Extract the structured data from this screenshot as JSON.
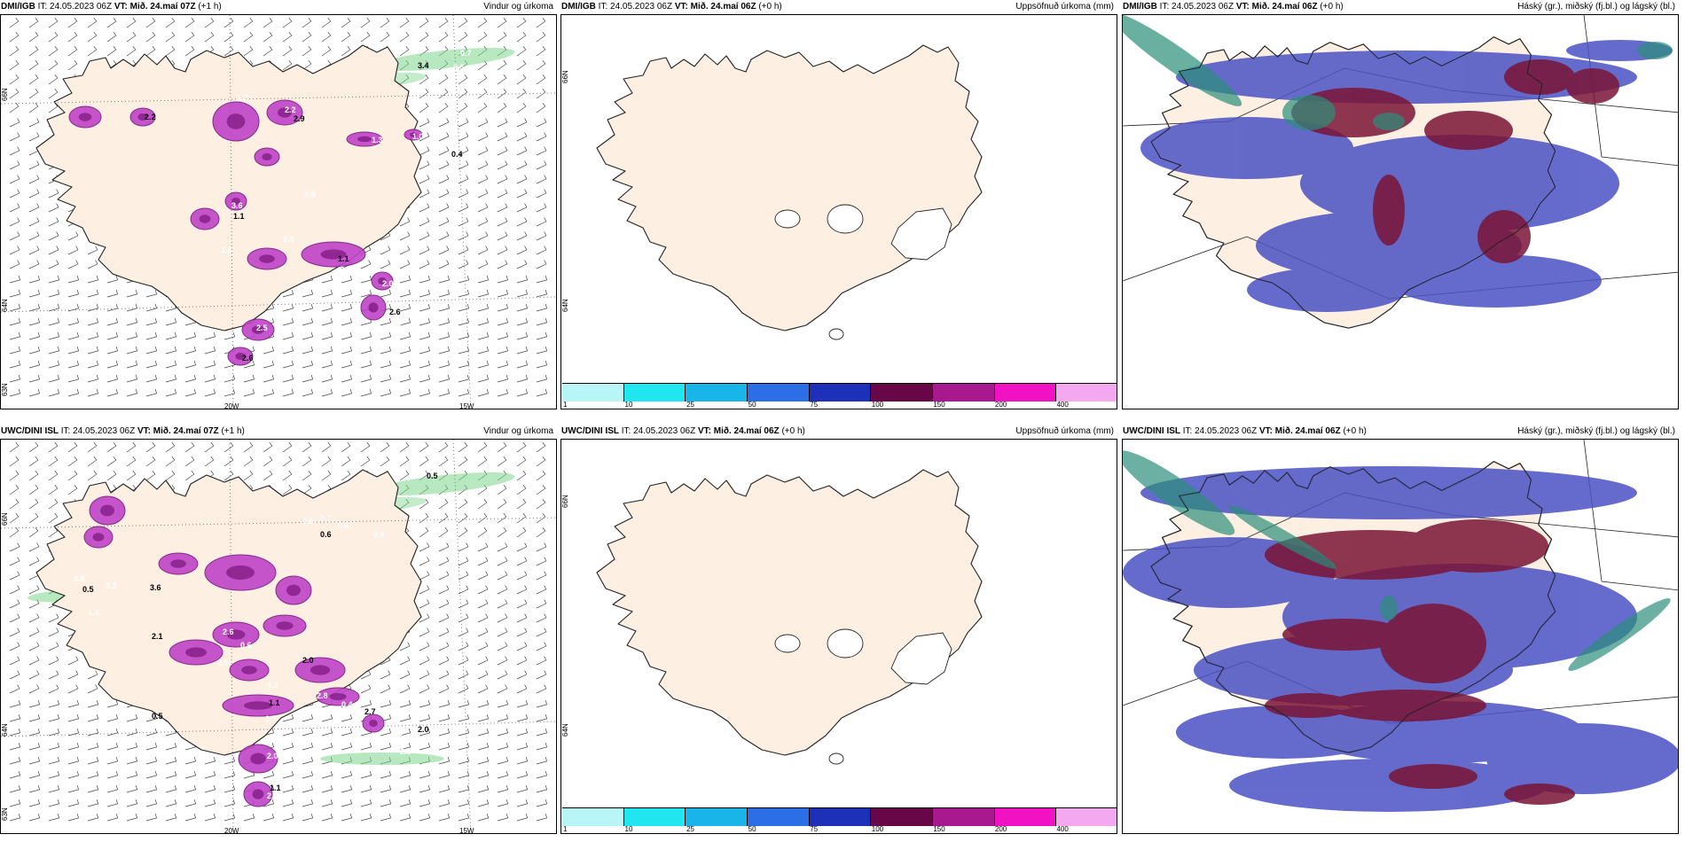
{
  "panels": [
    {
      "model": "DMI/IGB",
      "it": "IT: 24.05.2023 06Z",
      "vt": "VT: Mið. 24.maí 07Z",
      "lead": "(+1 h)",
      "product": "Vindur og úrkoma"
    },
    {
      "model": "DMI/IGB",
      "it": "IT: 24.05.2023 06Z",
      "vt": "VT: Mið. 24.maí 06Z",
      "lead": "(+0 h)",
      "product": "Uppsöfnuð úrkoma (mm)"
    },
    {
      "model": "DMI/IGB",
      "it": "IT: 24.05.2023 06Z",
      "vt": "VT: Mið. 24.maí 06Z",
      "lead": "(+0 h)",
      "product": "Háský (gr.), miðský (fj.bl.) og lágský (bl.)"
    },
    {
      "model": "UWC/DINI ISL",
      "it": "IT: 24.05.2023 06Z",
      "vt": "VT: Mið. 24.maí 07Z",
      "lead": "(+1 h)",
      "product": "Vindur og úrkoma"
    },
    {
      "model": "UWC/DINI ISL",
      "it": "IT: 24.05.2023 06Z",
      "vt": "VT: Mið. 24.maí 06Z",
      "lead": "(+0 h)",
      "product": "Uppsöfnuð úrkoma (mm)"
    },
    {
      "model": "UWC/DINI ISL",
      "it": "IT: 24.05.2023 06Z",
      "vt": "VT: Mið. 24.maí 06Z",
      "lead": "(+0 h)",
      "product": "Háský (gr.), miðský (fj.bl.) og lágský (bl.)"
    }
  ],
  "axis": {
    "lon_20": "20W",
    "lon_15": "15W",
    "lat_66": "66N",
    "lat_64": "64N",
    "lat_63": "63N"
  },
  "colorbar": {
    "levels": [
      "1",
      "10",
      "25",
      "50",
      "75",
      "100",
      "150",
      "200",
      "400"
    ],
    "colors": [
      "#b7f5f7",
      "#22e6ef",
      "#19b4e8",
      "#2b6ee6",
      "#1c31b8",
      "#680748",
      "#a8188f",
      "#f012c3",
      "#f4a8ef"
    ]
  },
  "precip_top": [
    "3.4",
    "0.7",
    "0.5",
    "2.2",
    "1.2",
    "2.2",
    "2.9",
    "1.3",
    "1.0",
    "0.4",
    "3.6",
    "2.5",
    "1.1",
    "1.3",
    "2.0",
    "1.1",
    "3.2",
    "2.0",
    "2.6",
    "3.0",
    "2.5",
    "2.6"
  ],
  "precip_bottom": [
    "0.5",
    "0.8",
    "0.7",
    "0.6",
    "0.6",
    "0.8",
    "2.1",
    "3.3",
    "1.4",
    "3.6",
    "2.6",
    "0.6",
    "2.0",
    "2.5",
    "4.3",
    "1.1",
    "2.8",
    "0.4",
    "2.7",
    "1.7",
    "2.2",
    "2.0",
    "2.3",
    "2.0",
    "1.1",
    "0.7",
    "3.3",
    "0.5",
    "2.0",
    "0.6",
    "0.5"
  ],
  "colors": {
    "land": "#fdefe1",
    "coast": "#222222",
    "precip": "#c044c8",
    "precip_dark": "#7a147c",
    "green": "#7bd68a",
    "high": "#2b8f7a",
    "mid": "#7a1436",
    "low": "#4a52c4"
  }
}
